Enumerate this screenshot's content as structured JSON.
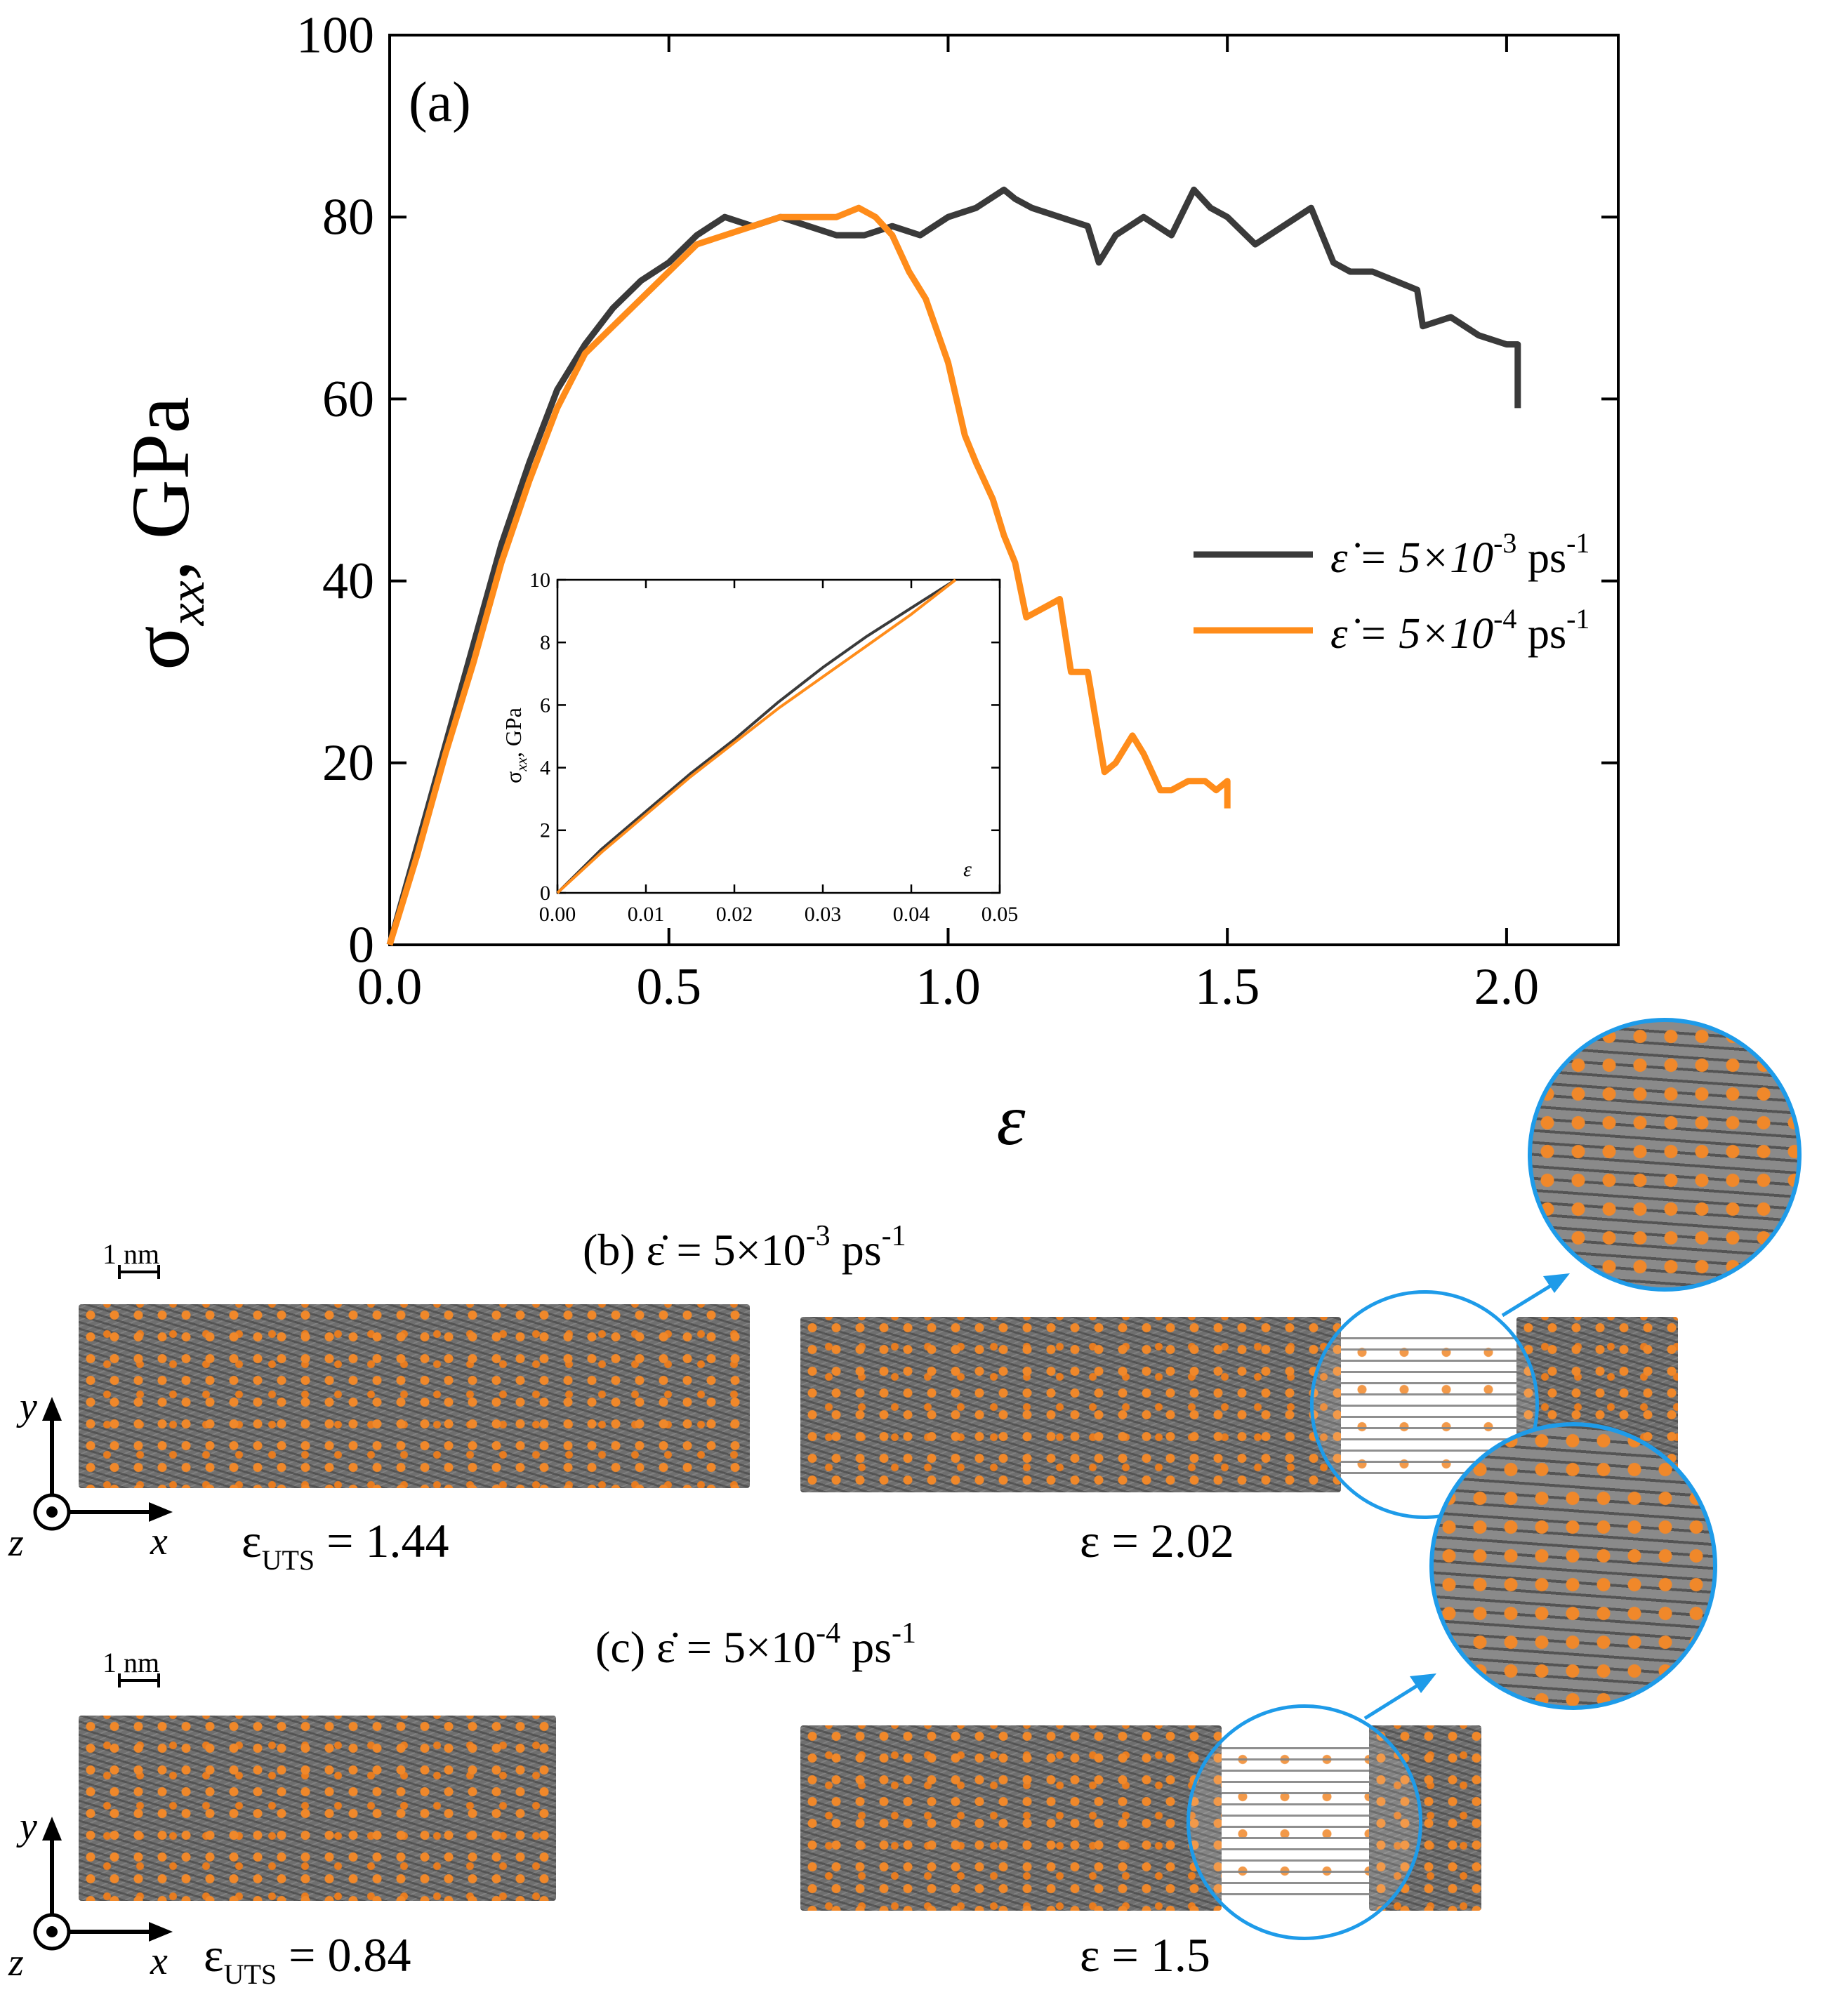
{
  "chart_data": {
    "type": "line",
    "panel_label": "(a)",
    "xlabel": "ε",
    "ylabel": "σxx, GPa",
    "xlim": [
      0.0,
      2.2
    ],
    "ylim": [
      0,
      100
    ],
    "xticks": [
      "0.0",
      "0.5",
      "1.0",
      "1.5",
      "2.0"
    ],
    "xtick_values": [
      0.0,
      0.5,
      1.0,
      1.5,
      2.0
    ],
    "yticks": [
      "0",
      "20",
      "40",
      "60",
      "80",
      "100"
    ],
    "ytick_values": [
      0,
      20,
      40,
      60,
      80,
      100
    ],
    "series": [
      {
        "name": "ε̇ = 5×10-3 ps-1",
        "color": "#3a3a3a",
        "x": [
          0.0,
          0.05,
          0.1,
          0.15,
          0.2,
          0.25,
          0.3,
          0.35,
          0.4,
          0.45,
          0.5,
          0.55,
          0.6,
          0.65,
          0.7,
          0.75,
          0.8,
          0.85,
          0.9,
          0.95,
          1.0,
          1.05,
          1.1,
          1.12,
          1.15,
          1.2,
          1.25,
          1.27,
          1.3,
          1.35,
          1.4,
          1.44,
          1.47,
          1.5,
          1.55,
          1.6,
          1.65,
          1.69,
          1.72,
          1.76,
          1.8,
          1.84,
          1.85,
          1.9,
          1.95,
          2.0,
          2.02,
          2.02
        ],
        "y": [
          0,
          11,
          22,
          33,
          44,
          53,
          61,
          66,
          70,
          73,
          75,
          78,
          80,
          79,
          80,
          79,
          78,
          78,
          79,
          78,
          80,
          81,
          83,
          82,
          81,
          80,
          79,
          75,
          78,
          80,
          78,
          83,
          81,
          80,
          77,
          79,
          81,
          75,
          74,
          74,
          73,
          72,
          68,
          69,
          67,
          66,
          66,
          59
        ]
      },
      {
        "name": "ε̇ = 5×10-4 ps-1",
        "color": "#ff8c1a",
        "x": [
          0.0,
          0.05,
          0.1,
          0.15,
          0.2,
          0.25,
          0.3,
          0.35,
          0.4,
          0.45,
          0.5,
          0.55,
          0.6,
          0.65,
          0.7,
          0.75,
          0.8,
          0.84,
          0.87,
          0.9,
          0.93,
          0.96,
          1.0,
          1.03,
          1.05,
          1.08,
          1.1,
          1.12,
          1.14,
          1.17,
          1.2,
          1.22,
          1.25,
          1.28,
          1.3,
          1.33,
          1.35,
          1.38,
          1.4,
          1.43,
          1.46,
          1.48,
          1.5,
          1.5
        ],
        "y": [
          0,
          10,
          21,
          31,
          42,
          51,
          59,
          65,
          68,
          71,
          74,
          77,
          78,
          79,
          80,
          80,
          80,
          81,
          80,
          78,
          74,
          71,
          64,
          56,
          53,
          49,
          45,
          42,
          36,
          37,
          38,
          30,
          30,
          19,
          20,
          23,
          21,
          17,
          17,
          18,
          18,
          17,
          18,
          15
        ]
      }
    ],
    "legend": [
      {
        "prefix": "ε̇ = 5×10",
        "exp": "-3",
        "unit": " ps",
        "unit_exp": "-1"
      },
      {
        "prefix": "ε̇ = 5×10",
        "exp": "-4",
        "unit": " ps",
        "unit_exp": "-1"
      }
    ],
    "inset": {
      "type": "line",
      "xlabel": "ε",
      "ylabel": "σxx, GPa",
      "xlim": [
        0.0,
        0.05
      ],
      "ylim": [
        0,
        10
      ],
      "xticks": [
        "0.00",
        "0.01",
        "0.02",
        "0.03",
        "0.04",
        "0.05"
      ],
      "xtick_values": [
        0.0,
        0.01,
        0.02,
        0.03,
        0.04,
        0.05
      ],
      "yticks": [
        "0",
        "2",
        "4",
        "6",
        "8",
        "10"
      ],
      "ytick_values": [
        0,
        2,
        4,
        6,
        8,
        10
      ],
      "series": [
        {
          "name": "ε̇ = 5×10-3 ps-1",
          "color": "#3a3a3a",
          "x": [
            0.0,
            0.005,
            0.01,
            0.015,
            0.02,
            0.025,
            0.03,
            0.035,
            0.04,
            0.045
          ],
          "y": [
            0,
            1.4,
            2.6,
            3.8,
            4.9,
            6.1,
            7.2,
            8.2,
            9.1,
            10.0
          ]
        },
        {
          "name": "ε̇ = 5×10-4 ps-1",
          "color": "#ff8c1a",
          "x": [
            0.0,
            0.005,
            0.01,
            0.015,
            0.02,
            0.025,
            0.03,
            0.035,
            0.04,
            0.045
          ],
          "y": [
            0,
            1.3,
            2.5,
            3.7,
            4.8,
            5.9,
            6.9,
            7.9,
            8.9,
            10.0
          ]
        }
      ]
    }
  },
  "snapshots": {
    "b": {
      "title_prefix": "(b) ε̇ = 5×10",
      "title_exp": "-3",
      "title_unit": " ps",
      "title_unit_exp": "-1",
      "scale_label": "1 nm",
      "left_label_main": "ε",
      "left_label_sub": "UTS",
      "left_label_value": " = 1.44",
      "right_label": "ε = 2.02"
    },
    "c": {
      "title_prefix": "(c) ε̇ = 5×10",
      "title_exp": "-4",
      "title_unit": " ps",
      "title_unit_exp": "-1",
      "scale_label": "1 nm",
      "left_label_main": "ε",
      "left_label_sub": "UTS",
      "left_label_value": " = 0.84",
      "right_label": "ε = 1.5"
    },
    "axes": {
      "y": "y",
      "x": "x",
      "z": "z"
    }
  },
  "colors": {
    "zoom_ring": "#1e9be9",
    "atoms": "#f0882a",
    "bonds": "#6f6f6f"
  }
}
